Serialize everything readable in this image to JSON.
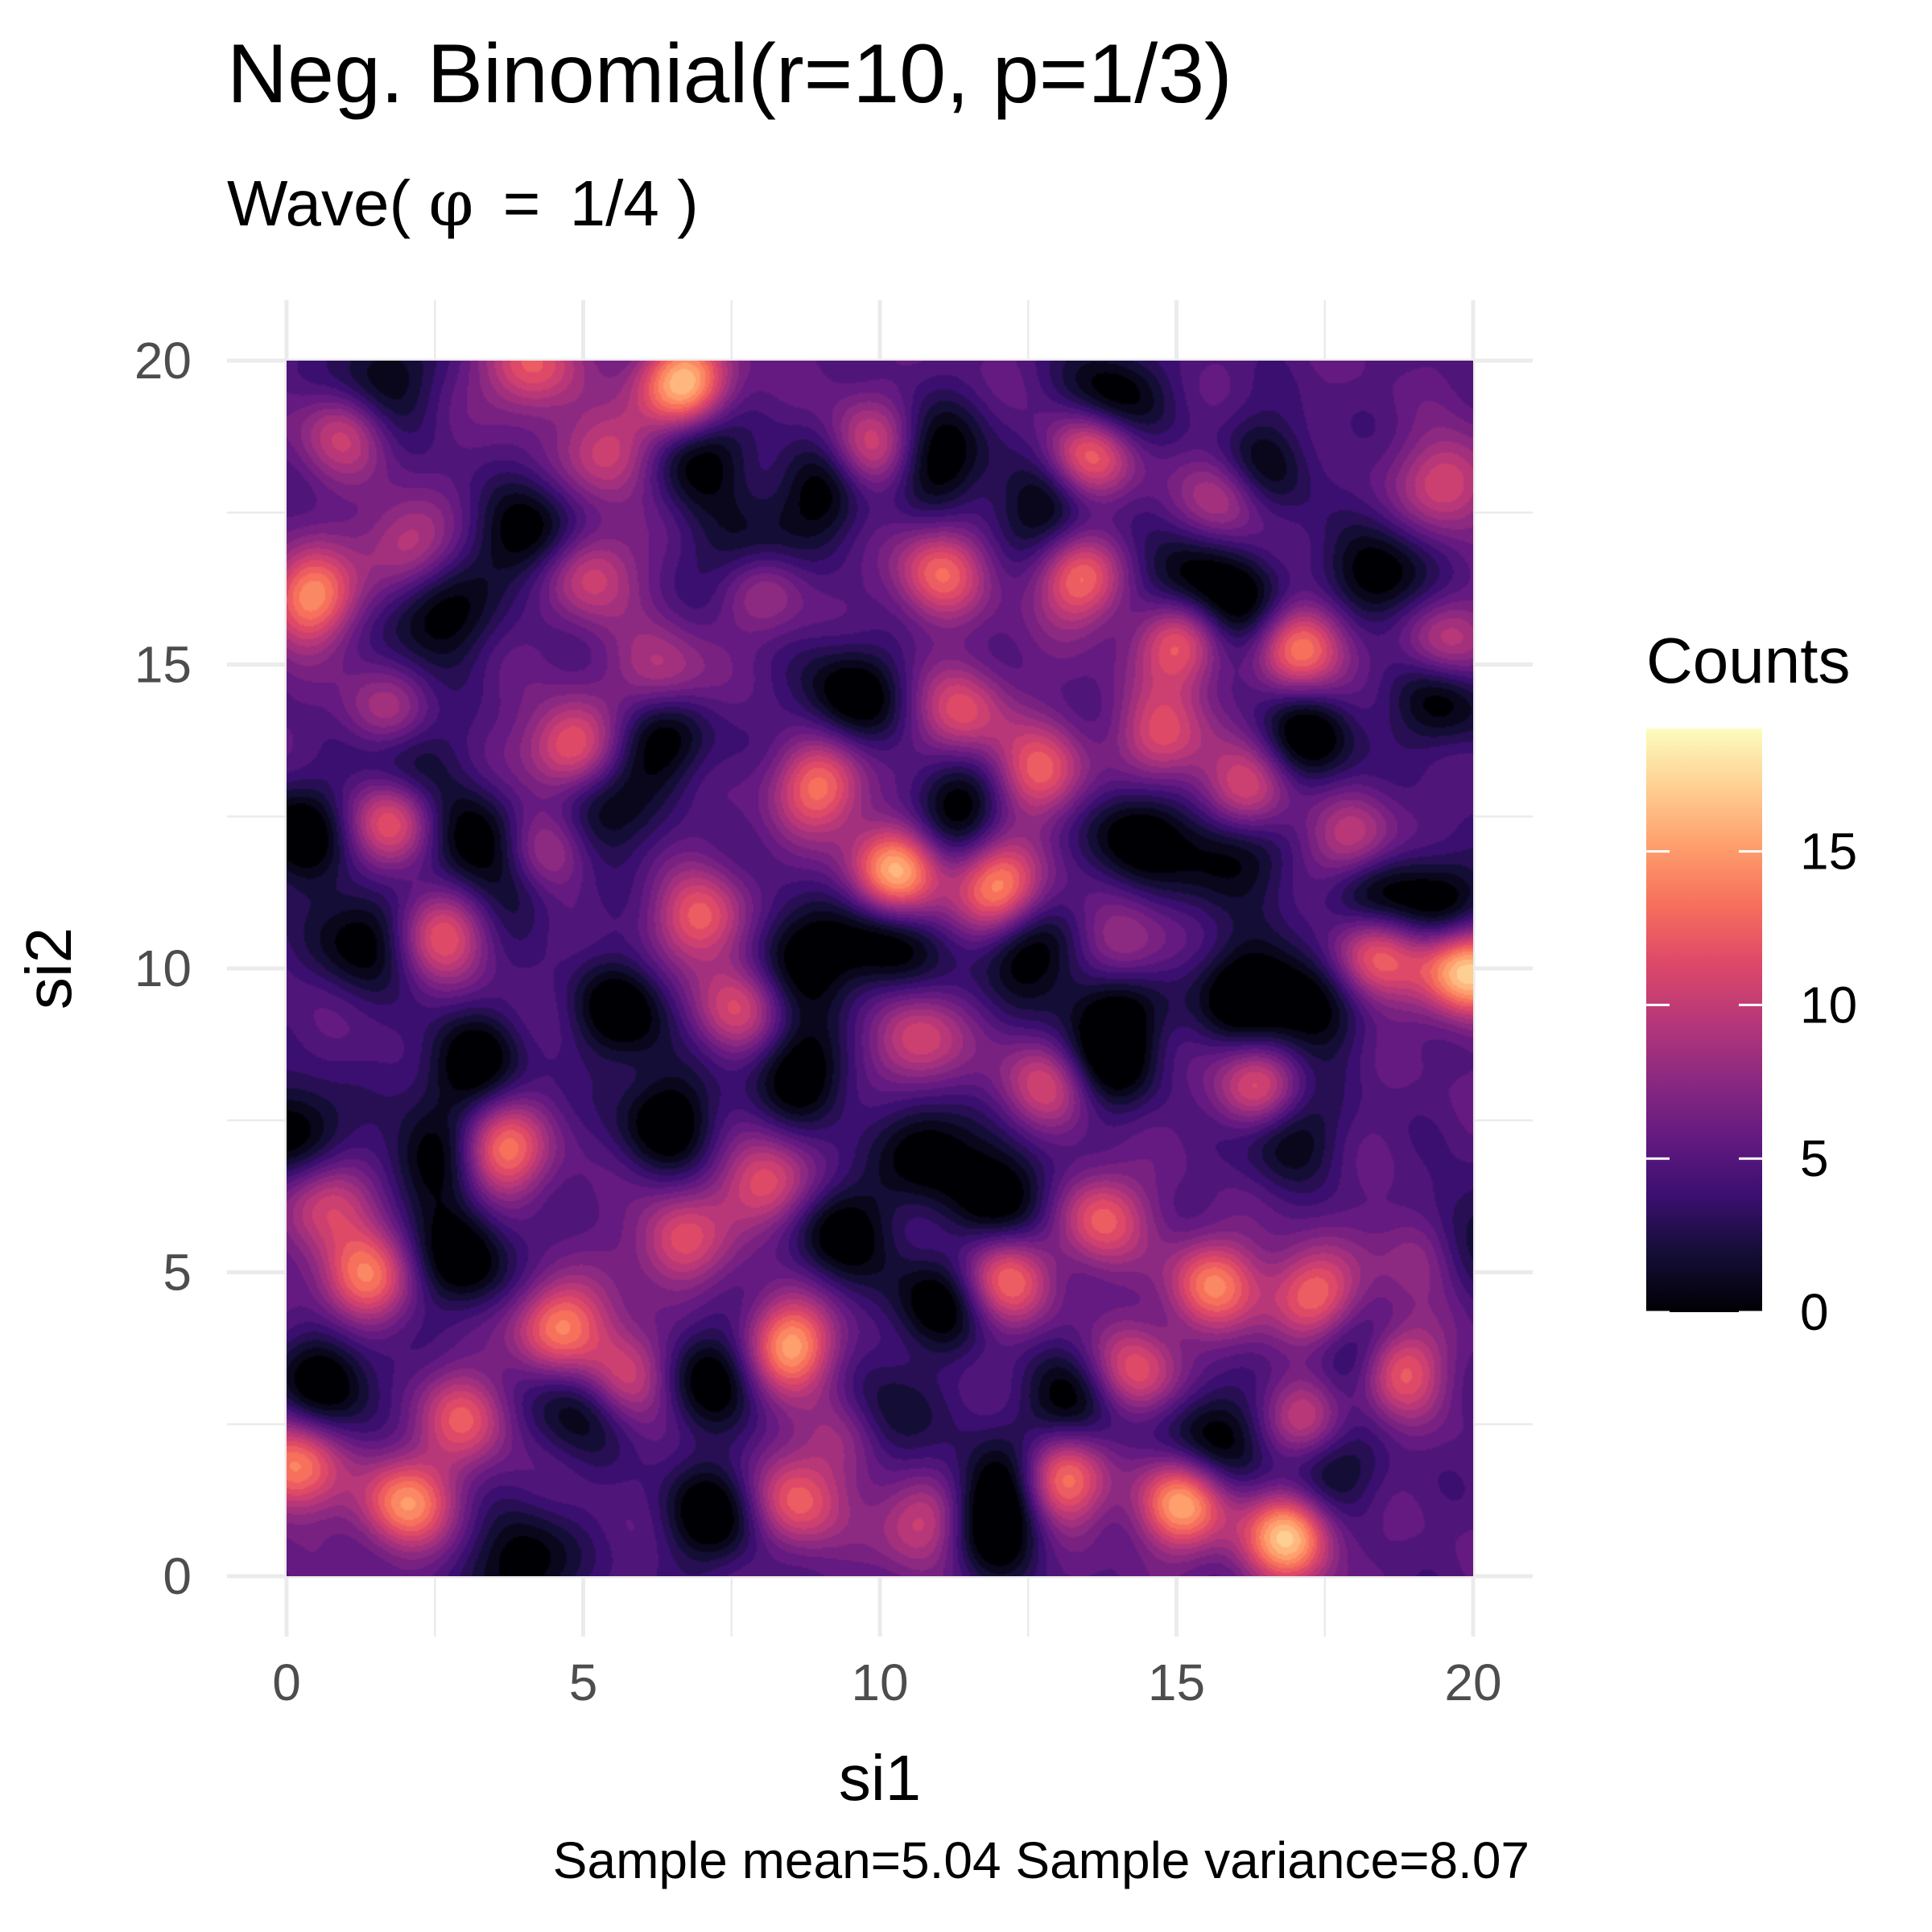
{
  "chart_data": {
    "type": "heatmap",
    "title": "Neg. Binomial(r=10, p=1/3)",
    "subtitle": {
      "prefix": "Wave(",
      "symbol": "φ",
      "equals": "=",
      "value": "1/4",
      "suffix": ")"
    },
    "xlabel": "si1",
    "ylabel": "si2",
    "xlim": [
      0,
      20
    ],
    "ylim": [
      0,
      20
    ],
    "x_ticks": [
      0,
      5,
      10,
      15,
      20
    ],
    "y_ticks": [
      0,
      5,
      10,
      15,
      20
    ],
    "x_tick_labels": [
      "0",
      "5",
      "10",
      "15",
      "20"
    ],
    "y_tick_labels": [
      "0",
      "5",
      "10",
      "15",
      "20"
    ],
    "grid": true,
    "legend": {
      "title": "Counts",
      "placement": "right",
      "range": [
        0,
        19
      ],
      "ticks": [
        0,
        5,
        10,
        15
      ],
      "tick_labels": [
        "0",
        "5",
        "10",
        "15"
      ]
    },
    "colorscale": "magma",
    "caption": "Sample mean=5.04 Sample variance=8.07",
    "hotspots": [
      [
        6.7,
        19.6,
        18
      ],
      [
        0.4,
        16.1,
        15
      ],
      [
        4.3,
        11.9,
        16
      ],
      [
        10.3,
        11.6,
        17
      ],
      [
        12.0,
        11.3,
        16
      ],
      [
        13.5,
        18.4,
        15
      ],
      [
        13.4,
        16.4,
        14
      ],
      [
        15.1,
        15.4,
        15
      ],
      [
        17.1,
        15.3,
        16
      ],
      [
        19.9,
        10.0,
        19
      ],
      [
        18.3,
        10.2,
        15
      ],
      [
        3.6,
        7.0,
        15
      ],
      [
        8.5,
        3.8,
        16
      ],
      [
        4.6,
        4.1,
        15
      ],
      [
        1.3,
        4.9,
        14
      ],
      [
        2.0,
        1.2,
        15
      ],
      [
        5.7,
        3.3,
        14
      ],
      [
        13.0,
        1.6,
        17
      ],
      [
        15.1,
        1.2,
        16
      ],
      [
        16.9,
        0.7,
        18
      ],
      [
        12.1,
        4.9,
        14
      ],
      [
        15.6,
        4.8,
        14
      ],
      [
        17.3,
        4.6,
        14
      ],
      [
        18.7,
        3.4,
        15
      ],
      [
        16.4,
        8.0,
        14
      ],
      [
        0.1,
        1.8,
        15
      ],
      [
        9.0,
        13.0,
        14
      ],
      [
        4.8,
        13.6,
        14
      ],
      [
        1.8,
        12.4,
        13
      ],
      [
        11.0,
        16.5,
        13
      ],
      [
        12.7,
        13.2,
        13
      ],
      [
        7.0,
        10.8,
        13
      ],
      [
        5.1,
        16.5,
        12
      ],
      [
        8.1,
        6.4,
        13
      ],
      [
        2.6,
        10.6,
        13
      ],
      [
        14.1,
        10.2,
        12
      ],
      [
        9.8,
        18.5,
        13
      ],
      [
        1.0,
        18.9,
        12
      ],
      [
        19.5,
        15.3,
        12
      ],
      [
        16.2,
        12.9,
        13
      ],
      [
        19.2,
        5.4,
        12
      ],
      [
        7.6,
        9.4,
        12
      ],
      [
        10.6,
        8.8,
        12
      ],
      [
        12.8,
        8.1,
        12
      ],
      [
        3.0,
        2.6,
        12
      ],
      [
        6.6,
        5.5,
        12
      ],
      [
        9.4,
        2.3,
        12
      ],
      [
        10.8,
        0.9,
        13
      ],
      [
        14.3,
        3.3,
        13
      ],
      [
        17.2,
        2.6,
        13
      ],
      [
        4.1,
        19.9,
        13
      ],
      [
        0.8,
        6.2,
        12
      ],
      [
        13.7,
        5.9,
        13
      ],
      [
        18.0,
        12.0,
        12
      ],
      [
        11.4,
        14.2,
        12
      ],
      [
        6.3,
        14.8,
        11
      ],
      [
        8.0,
        16.3,
        12
      ],
      [
        15.9,
        17.8,
        12
      ],
      [
        19.6,
        18.0,
        12
      ],
      [
        14.8,
        13.8,
        12
      ],
      [
        1.7,
        14.1,
        12
      ],
      [
        8.6,
        1.2,
        13
      ],
      [
        5.5,
        18.5,
        12
      ],
      [
        2.0,
        16.9,
        11
      ]
    ],
    "coldspots": [
      [
        6.9,
        18.5
      ],
      [
        3.1,
        8.4
      ],
      [
        4.0,
        11.5
      ],
      [
        6.3,
        13.8
      ],
      [
        14.0,
        9.6
      ],
      [
        13.8,
        8.5
      ],
      [
        11.3,
        12.6
      ],
      [
        8.7,
        8.3
      ],
      [
        10.1,
        10.4
      ],
      [
        11.8,
        0.8
      ],
      [
        12.2,
        1.5
      ],
      [
        13.3,
        2.8
      ],
      [
        5.0,
        2.9
      ],
      [
        3.0,
        5.2
      ],
      [
        0.2,
        7.3
      ],
      [
        1.9,
        13.6
      ],
      [
        5.1,
        12.5
      ],
      [
        7.8,
        16.7
      ],
      [
        9.1,
        17.9
      ],
      [
        12.9,
        17.6
      ],
      [
        15.1,
        16.3
      ],
      [
        17.2,
        13.8
      ],
      [
        18.2,
        11.2
      ],
      [
        19.5,
        11.0
      ],
      [
        16.8,
        7.4
      ],
      [
        17.4,
        1.7
      ],
      [
        15.6,
        2.3
      ],
      [
        11.0,
        4.5
      ],
      [
        9.9,
        2.5
      ],
      [
        2.5,
        15.8
      ],
      [
        0.2,
        12.2
      ],
      [
        4.1,
        17.1
      ],
      [
        1.5,
        19.6
      ],
      [
        13.9,
        19.4
      ],
      [
        16.4,
        18.2
      ],
      [
        19.7,
        5.6
      ],
      [
        18.0,
        3.5
      ],
      [
        4.0,
        0.2
      ],
      [
        7.2,
        1.0
      ],
      [
        6.4,
        7.5
      ],
      [
        10.9,
        7.0
      ],
      [
        12.2,
        6.2
      ],
      [
        16.1,
        9.6
      ],
      [
        19.5,
        14.5
      ],
      [
        18.4,
        16.4
      ],
      [
        8.6,
        10.2
      ],
      [
        15.9,
        11.9
      ],
      [
        2.5,
        6.8
      ],
      [
        0.7,
        3.2
      ],
      [
        7.1,
        3.3
      ],
      [
        9.3,
        5.7
      ],
      [
        14.3,
        12.2
      ],
      [
        11.0,
        18.4
      ],
      [
        3.1,
        12.1
      ],
      [
        16.2,
        15.8
      ],
      [
        1.3,
        10.5
      ],
      [
        5.7,
        9.3
      ],
      [
        12.4,
        10.3
      ],
      [
        17.3,
        9.4
      ],
      [
        9.5,
        14.5
      ]
    ]
  }
}
